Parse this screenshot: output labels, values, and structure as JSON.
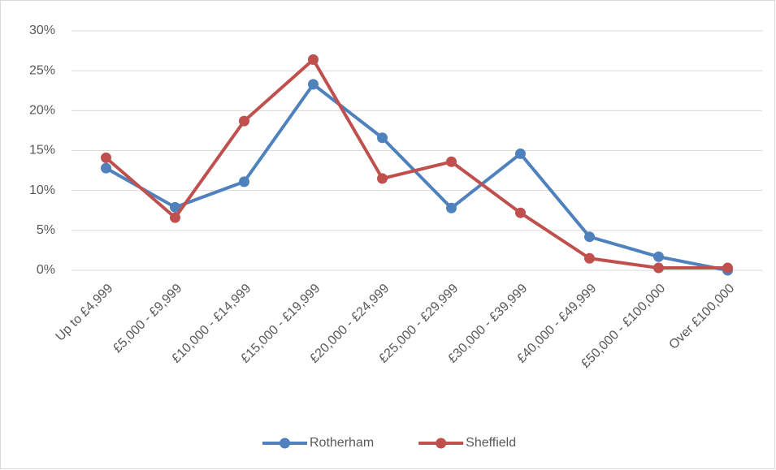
{
  "chart_data": {
    "type": "line",
    "categories": [
      "Up to £4,999",
      "£5,000 - £9,999",
      "£10,000 - £14,999",
      "£15,000 - £19,999",
      "£20,000 - £24,999",
      "£25,000 - £29,999",
      "£30,000 - £39,999",
      "£40,000 - £49,999",
      "£50,000 - £100,000",
      "Over £100,000"
    ],
    "series": [
      {
        "name": "Rotherham",
        "color": "#4f81bd",
        "values": [
          12.8,
          7.9,
          11.1,
          23.3,
          16.6,
          7.8,
          14.6,
          4.2,
          1.7,
          0.0
        ]
      },
      {
        "name": "Sheffield",
        "color": "#c0504d",
        "values": [
          14.1,
          6.6,
          18.7,
          26.4,
          11.5,
          13.6,
          7.2,
          1.5,
          0.3,
          0.3
        ]
      }
    ],
    "ylim": [
      0,
      30
    ],
    "yticks": [
      {
        "value": 0,
        "label": "0%"
      },
      {
        "value": 5,
        "label": "5%"
      },
      {
        "value": 10,
        "label": "10%"
      },
      {
        "value": 15,
        "label": "15%"
      },
      {
        "value": 20,
        "label": "20%"
      },
      {
        "value": 25,
        "label": "25%"
      },
      {
        "value": 30,
        "label": "30%"
      }
    ],
    "grid": true,
    "legend": "bottom"
  }
}
